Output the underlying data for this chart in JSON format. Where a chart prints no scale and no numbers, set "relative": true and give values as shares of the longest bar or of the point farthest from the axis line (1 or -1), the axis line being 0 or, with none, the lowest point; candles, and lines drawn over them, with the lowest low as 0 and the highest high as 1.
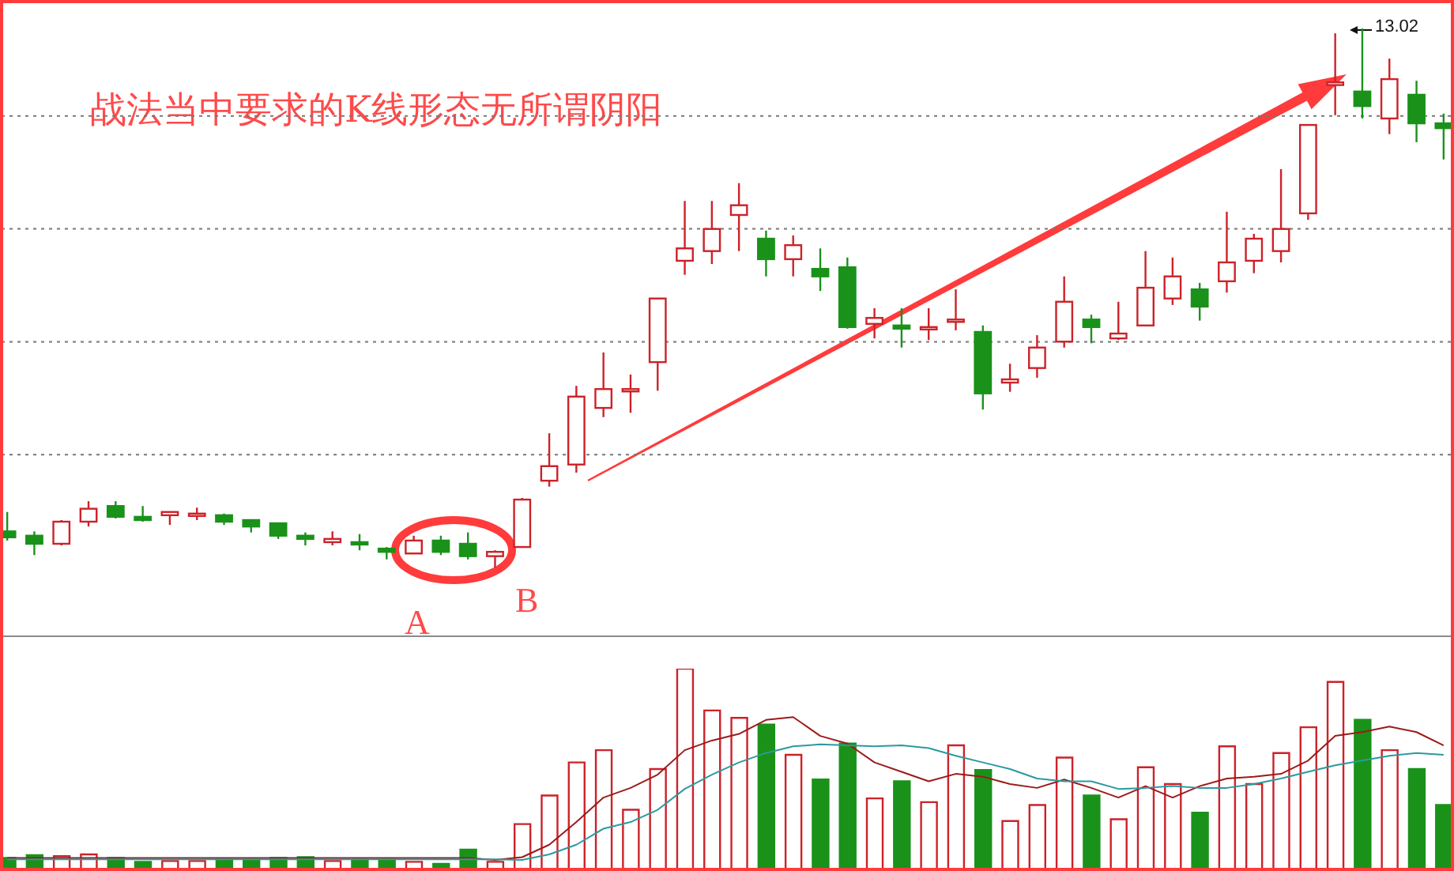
{
  "chart_data": [
    {
      "type": "candlestick",
      "relative": true,
      "grid": true,
      "tick_labels": false,
      "categories": [
        null,
        null,
        null,
        null,
        null,
        null,
        null,
        null,
        null,
        null,
        null,
        null,
        null,
        null,
        null,
        null,
        null,
        null,
        null,
        null,
        null,
        null,
        null,
        null,
        null,
        null,
        null,
        null,
        null,
        null,
        null,
        null,
        null,
        null,
        null,
        null,
        null,
        null,
        null,
        null,
        null,
        null,
        null,
        null,
        null,
        null,
        null,
        null,
        null,
        null,
        null,
        null,
        null,
        null
      ],
      "ohlc": [
        [
          0.067,
          0.103,
          0.05,
          0.056
        ],
        [
          0.059,
          0.067,
          0.023,
          0.044
        ],
        [
          0.044,
          0.088,
          0.041,
          0.085
        ],
        [
          0.085,
          0.123,
          0.076,
          0.109
        ],
        [
          0.114,
          0.123,
          0.091,
          0.094
        ],
        [
          0.094,
          0.114,
          0.085,
          0.088
        ],
        [
          0.097,
          0.103,
          0.079,
          0.103
        ],
        [
          0.097,
          0.111,
          0.088,
          0.1
        ],
        [
          0.097,
          0.1,
          0.079,
          0.085
        ],
        [
          0.088,
          0.088,
          0.065,
          0.076
        ],
        [
          0.082,
          0.082,
          0.053,
          0.059
        ],
        [
          0.059,
          0.065,
          0.041,
          0.053
        ],
        [
          0.047,
          0.067,
          0.041,
          0.053
        ],
        [
          0.047,
          0.062,
          0.032,
          0.044
        ],
        [
          0.035,
          0.038,
          0.015,
          0.029
        ],
        [
          0.026,
          0.059,
          0.026,
          0.05
        ],
        [
          0.05,
          0.059,
          0.023,
          0.029
        ],
        [
          0.044,
          0.065,
          0.015,
          0.021
        ],
        [
          0.021,
          0.032,
          0,
          0.029
        ],
        [
          0.038,
          0.129,
          0.038,
          0.126
        ],
        [
          0.161,
          0.249,
          0.15,
          0.188
        ],
        [
          0.191,
          0.337,
          0.176,
          0.317
        ],
        [
          0.296,
          0.399,
          0.279,
          0.331
        ],
        [
          0.328,
          0.358,
          0.287,
          0.331
        ],
        [
          0.381,
          0.499,
          0.328,
          0.499
        ],
        [
          0.569,
          0.68,
          0.543,
          0.592
        ],
        [
          0.587,
          0.68,
          0.563,
          0.628
        ],
        [
          0.654,
          0.713,
          0.587,
          0.672
        ],
        [
          0.61,
          0.625,
          0.54,
          0.572
        ],
        [
          0.572,
          0.616,
          0.54,
          0.598
        ],
        [
          0.554,
          0.592,
          0.513,
          0.54
        ],
        [
          0.557,
          0.575,
          0.443,
          0.446
        ],
        [
          0.452,
          0.481,
          0.425,
          0.463
        ],
        [
          0.449,
          0.481,
          0.408,
          0.443
        ],
        [
          0.443,
          0.481,
          0.422,
          0.446
        ],
        [
          0.458,
          0.516,
          0.44,
          0.46
        ],
        [
          0.437,
          0.449,
          0.293,
          0.323
        ],
        [
          0.343,
          0.378,
          0.326,
          0.349
        ],
        [
          0.37,
          0.431,
          0.352,
          0.408
        ],
        [
          0.419,
          0.54,
          0.408,
          0.493
        ],
        [
          0.46,
          0.469,
          0.416,
          0.446
        ],
        [
          0.425,
          0.493,
          0.422,
          0.434
        ],
        [
          0.449,
          0.587,
          0.449,
          0.519
        ],
        [
          0.499,
          0.575,
          0.487,
          0.54
        ],
        [
          0.516,
          0.528,
          0.458,
          0.484
        ],
        [
          0.531,
          0.66,
          0.51,
          0.566
        ],
        [
          0.569,
          0.619,
          0.546,
          0.61
        ],
        [
          0.587,
          0.739,
          0.566,
          0.628
        ],
        [
          0.657,
          0.821,
          0.645,
          0.821
        ],
        [
          0.895,
          0.991,
          0.839,
          0.9
        ],
        [
          0.883,
          1,
          0.833,
          0.856
        ],
        [
          0.833,
          0.944,
          0.804,
          0.906
        ],
        [
          0.877,
          0.903,
          0.789,
          0.824
        ],
        [
          0.824,
          0.842,
          0.757,
          0.815
        ]
      ],
      "colors": [
        "#1a921a",
        "#1a921a",
        "#cc2229",
        "#cc2229",
        "#1a921a",
        "#1a921a",
        "#cc2229",
        "#cc2229",
        "#1a921a",
        "#1a921a",
        "#1a921a",
        "#1a921a",
        "#cc2229",
        "#1a921a",
        "#1a921a",
        "#cc2229",
        "#1a921a",
        "#1a921a",
        "#cc2229",
        "#cc2229",
        "#cc2229",
        "#cc2229",
        "#cc2229",
        "#cc2229",
        "#cc2229",
        "#cc2229",
        "#cc2229",
        "#cc2229",
        "#1a921a",
        "#cc2229",
        "#1a921a",
        "#1a921a",
        "#cc2229",
        "#1a921a",
        "#cc2229",
        "#cc2229",
        "#1a921a",
        "#cc2229",
        "#cc2229",
        "#cc2229",
        "#1a921a",
        "#cc2229",
        "#cc2229",
        "#cc2229",
        "#1a921a",
        "#cc2229",
        "#cc2229",
        "#cc2229",
        "#cc2229",
        "#cc2229",
        "#1a921a",
        "#cc2229",
        "#1a921a",
        "#1a921a"
      ],
      "annotations": [
        "战法当中要求的K线形态无所谓阴阳",
        "A",
        "B",
        "13.02"
      ]
    },
    {
      "type": "bar",
      "relative": true,
      "tick_labels": false,
      "categories": [
        null,
        null,
        null,
        null,
        null,
        null,
        null,
        null,
        null,
        null,
        null,
        null,
        null,
        null,
        null,
        null,
        null,
        null,
        null,
        null,
        null,
        null,
        null,
        null,
        null,
        null,
        null,
        null,
        null,
        null,
        null,
        null,
        null,
        null,
        null,
        null,
        null,
        null,
        null,
        null,
        null,
        null,
        null,
        null,
        null,
        null,
        null,
        null,
        null,
        null,
        null,
        null,
        null,
        null
      ],
      "series": [
        {
          "type": "bar",
          "colors": [
            "#1a921a",
            "#1a921a",
            "#cc2229",
            "#cc2229",
            "#1a921a",
            "#1a921a",
            "#cc2229",
            "#cc2229",
            "#1a921a",
            "#1a921a",
            "#1a921a",
            "#1a921a",
            "#cc2229",
            "#1a921a",
            "#1a921a",
            "#cc2229",
            "#1a921a",
            "#1a921a",
            "#cc2229",
            "#cc2229",
            "#cc2229",
            "#cc2229",
            "#cc2229",
            "#cc2229",
            "#cc2229",
            "#cc2229",
            "#cc2229",
            "#cc2229",
            "#1a921a",
            "#cc2229",
            "#1a921a",
            "#1a921a",
            "#cc2229",
            "#1a921a",
            "#cc2229",
            "#cc2229",
            "#1a921a",
            "#cc2229",
            "#cc2229",
            "#cc2229",
            "#1a921a",
            "#cc2229",
            "#cc2229",
            "#cc2229",
            "#1a921a",
            "#cc2229",
            "#cc2229",
            "#cc2229",
            "#cc2229",
            "#cc2229",
            "#1a921a",
            "#cc2229",
            "#1a921a",
            "#1a921a"
          ],
          "values": [
            0.057,
            0.071,
            0.066,
            0.075,
            0.057,
            0.038,
            0.042,
            0.042,
            0.047,
            0.047,
            0.057,
            0.061,
            0.042,
            0.047,
            0.047,
            0.038,
            0.028,
            0.099,
            0.038,
            0.226,
            0.368,
            0.533,
            0.594,
            0.297,
            0.5,
            1,
            0.792,
            0.755,
            0.722,
            0.571,
            0.448,
            0.627,
            0.354,
            0.439,
            0.335,
            0.618,
            0.495,
            0.241,
            0.321,
            0.557,
            0.368,
            0.25,
            0.509,
            0.425,
            0.283,
            0.613,
            0.425,
            0.58,
            0.708,
            0.934,
            0.745,
            0.594,
            0.5,
            0.321
          ]
        },
        {
          "type": "line",
          "color": "#9b1b1b",
          "values": [
            0.057,
            0.057,
            0.057,
            0.057,
            0.057,
            0.057,
            0.057,
            0.057,
            0.057,
            0.057,
            0.057,
            0.057,
            0.057,
            0.057,
            0.057,
            0.057,
            0.057,
            0.057,
            0.047,
            0.061,
            0.123,
            0.236,
            0.358,
            0.406,
            0.472,
            0.594,
            0.642,
            0.675,
            0.745,
            0.759,
            0.665,
            0.627,
            0.533,
            0.486,
            0.439,
            0.476,
            0.462,
            0.425,
            0.406,
            0.448,
            0.406,
            0.358,
            0.415,
            0.358,
            0.415,
            0.453,
            0.462,
            0.476,
            0.542,
            0.665,
            0.684,
            0.712,
            0.684,
            0.618
          ]
        },
        {
          "type": "line",
          "color": "#2a9aa0",
          "values": [
            0.05,
            0.05,
            0.05,
            0.05,
            0.05,
            0.05,
            0.05,
            0.05,
            0.05,
            0.05,
            0.05,
            0.05,
            0.05,
            0.05,
            0.05,
            0.05,
            0.05,
            0.05,
            0.05,
            0.047,
            0.075,
            0.123,
            0.203,
            0.236,
            0.297,
            0.401,
            0.472,
            0.533,
            0.58,
            0.613,
            0.623,
            0.618,
            0.613,
            0.618,
            0.604,
            0.566,
            0.533,
            0.5,
            0.453,
            0.439,
            0.439,
            0.401,
            0.406,
            0.415,
            0.406,
            0.406,
            0.425,
            0.453,
            0.486,
            0.519,
            0.542,
            0.566,
            0.58,
            0.571
          ]
        }
      ]
    }
  ]
}
